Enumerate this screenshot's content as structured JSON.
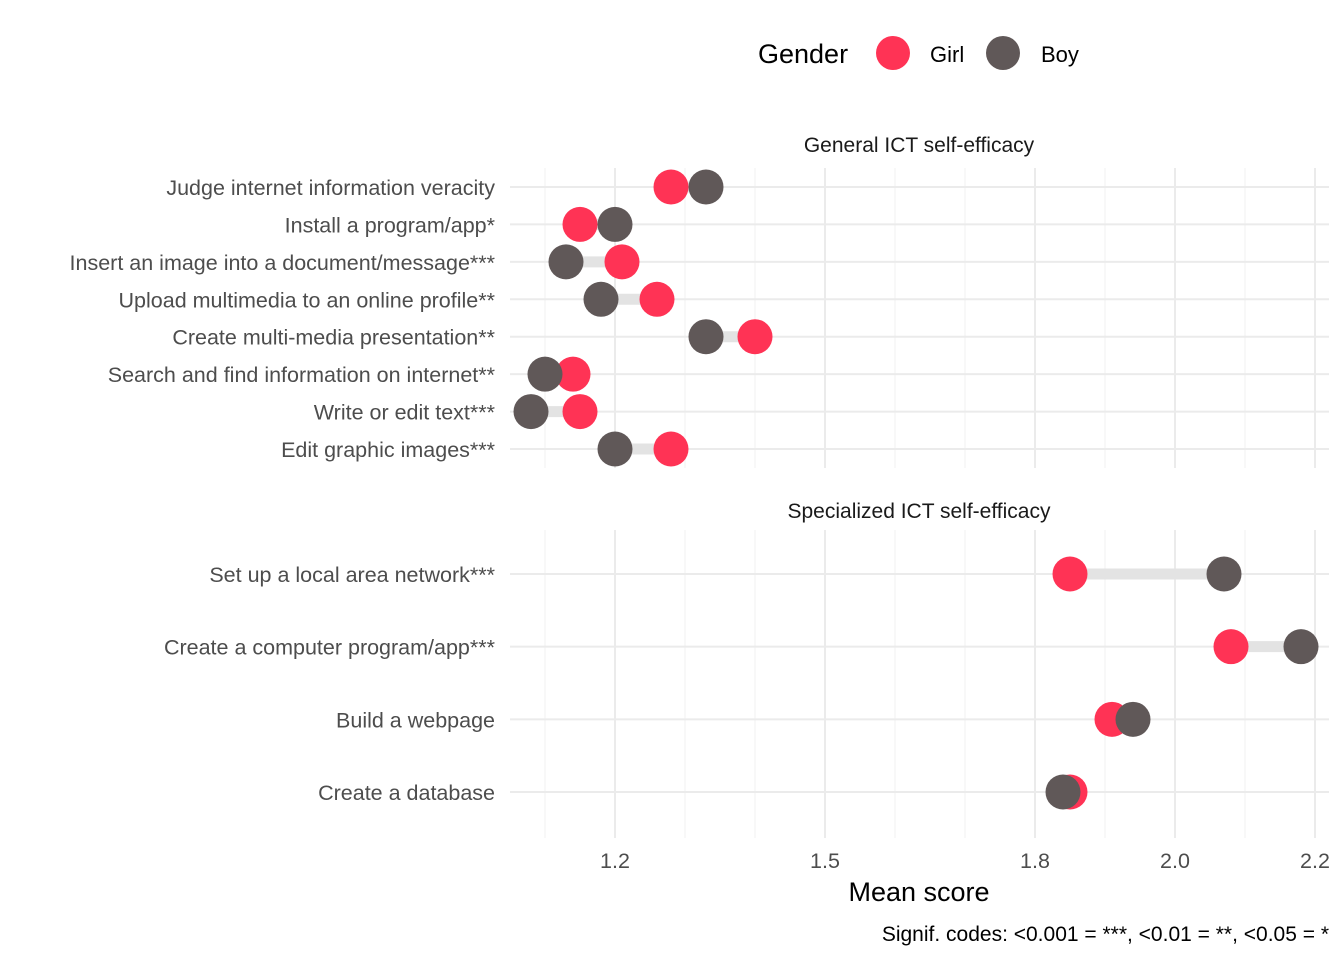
{
  "chart_data": {
    "type": "dumbbell",
    "xlabel": "Mean score",
    "xlim": [
      1.05,
      2.22
    ],
    "x_ticks": [
      1.2,
      1.5,
      1.8,
      2.0,
      2.2
    ],
    "x_tick_labels": [
      "1.2",
      "1.5",
      "1.8",
      "2.0",
      "2.2"
    ],
    "x_minor_ticks": [
      1.1,
      1.3,
      1.4,
      1.6,
      1.7,
      1.9,
      2.1
    ],
    "grid": true,
    "legend": {
      "title": "Gender",
      "position": "top",
      "items": [
        {
          "label": "Girl",
          "color": "#ff3355"
        },
        {
          "label": "Boy",
          "color": "#605858"
        }
      ]
    },
    "caption": "Signif. codes: <0.001 = ***, <0.01 = **, <0.05 = *",
    "segment_color": "#e3e3e3",
    "facets": [
      {
        "title": "General ICT self-efficacy",
        "rows": [
          {
            "label": "Judge internet information veracity",
            "girl": 1.28,
            "boy": 1.33
          },
          {
            "label": "Install a program/app*",
            "girl": 1.15,
            "boy": 1.2
          },
          {
            "label": "Insert an image into a document/message***",
            "girl": 1.21,
            "boy": 1.13
          },
          {
            "label": "Upload multimedia to an online profile**",
            "girl": 1.26,
            "boy": 1.18
          },
          {
            "label": "Create multi-media presentation**",
            "girl": 1.4,
            "boy": 1.33
          },
          {
            "label": "Search and find information on internet**",
            "girl": 1.14,
            "boy": 1.1
          },
          {
            "label": "Write or edit text***",
            "girl": 1.15,
            "boy": 1.08
          },
          {
            "label": "Edit graphic images***",
            "girl": 1.28,
            "boy": 1.2
          }
        ]
      },
      {
        "title": "Specialized ICT self-efficacy",
        "rows": [
          {
            "label": "Set up a local area network***",
            "girl": 1.85,
            "boy": 2.07
          },
          {
            "label": "Create a computer program/app***",
            "girl": 2.08,
            "boy": 2.18
          },
          {
            "label": "Build a webpage",
            "girl": 1.91,
            "boy": 1.94
          },
          {
            "label": "Create a database",
            "girl": 1.85,
            "boy": 1.84
          }
        ]
      }
    ]
  }
}
